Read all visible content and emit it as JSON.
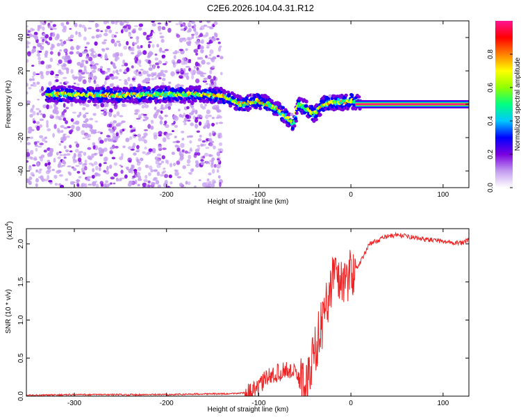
{
  "title": "C2E6.2026.104.04.31.R12",
  "chart_data": [
    {
      "type": "heatmap",
      "title": "C2E6.2026.104.04.31.R12",
      "xlabel": "Height of straight line (km)",
      "ylabel": "Frequency (Hz)",
      "xlim": [
        -352,
        128
      ],
      "ylim": [
        -50,
        50
      ],
      "xticks": [
        -300,
        -200,
        -100,
        0,
        100
      ],
      "xtick_labels": [
        "-300",
        "-200",
        "-100",
        "0",
        "100"
      ],
      "yticks": [
        -40,
        -20,
        0,
        20,
        40
      ],
      "ytick_labels": [
        "-40",
        "-20",
        "0",
        "20",
        "40"
      ],
      "colorbar": {
        "label": "Normalized spectral amplitude",
        "range": [
          0,
          1
        ],
        "ticks": [
          0.0,
          0.2,
          0.4,
          0.6,
          0.8
        ],
        "tick_labels": [
          "0.0",
          "0.2",
          "0.4",
          "0.6",
          "0.8"
        ],
        "colors": [
          "#ffffff",
          "#c39bf0",
          "#7b00e0",
          "#0000ff",
          "#00c8ff",
          "#00ff80",
          "#90ff00",
          "#ffff00",
          "#ff8000",
          "#ff0000",
          "#ff1493"
        ]
      },
      "ridge": {
        "x": [
          -330,
          -300,
          -250,
          -200,
          -160,
          -140,
          -120,
          -100,
          -90,
          -80,
          -70,
          -62,
          -58,
          -50,
          -40,
          -30,
          -20,
          -10,
          0,
          10,
          128
        ],
        "y": [
          6,
          6,
          5.5,
          6,
          6,
          5,
          0,
          2,
          0,
          -3,
          -8,
          -12,
          0,
          -2,
          -6,
          0,
          1,
          1,
          2,
          0,
          0
        ]
      },
      "scatter_extent_x": [
        -352,
        -140
      ]
    },
    {
      "type": "line",
      "xlabel": "Height of straight line (km)",
      "ylabel": "SNR (10 * v/v)",
      "scale_label": "(x10",
      "scale_exponent": "4",
      "xlim": [
        -352,
        128
      ],
      "ylim": [
        0,
        2.2
      ],
      "xticks": [
        -300,
        -200,
        -100,
        0,
        100
      ],
      "xtick_labels": [
        "-300",
        "-200",
        "-100",
        "0",
        "100"
      ],
      "yticks": [
        0.0,
        0.5,
        1.0,
        1.5,
        2.0
      ],
      "ytick_labels": [
        "0.0",
        "0.5",
        "1.0",
        "1.5",
        "2.0"
      ],
      "series": [
        {
          "name": "SNR",
          "color": "#ee2222",
          "x": [
            -352,
            -300,
            -250,
            -200,
            -160,
            -150,
            -130,
            -110,
            -100,
            -95,
            -90,
            -80,
            -70,
            -60,
            -55,
            -50,
            -45,
            -40,
            -35,
            -30,
            -25,
            -20,
            -15,
            -10,
            0,
            10,
            20,
            30,
            40,
            50,
            60,
            70,
            80,
            90,
            100,
            110,
            120,
            128
          ],
          "y": [
            0.01,
            0.02,
            0.02,
            0.02,
            0.03,
            0.03,
            0.03,
            0.05,
            0.1,
            0.2,
            0.25,
            0.3,
            0.35,
            0.3,
            0.2,
            0.15,
            0.25,
            0.6,
            0.8,
            1.0,
            1.3,
            1.55,
            1.6,
            1.5,
            1.6,
            1.75,
            2.0,
            2.05,
            2.1,
            2.12,
            2.1,
            2.08,
            2.06,
            2.05,
            2.03,
            2.02,
            2.01,
            2.05
          ]
        }
      ]
    }
  ]
}
